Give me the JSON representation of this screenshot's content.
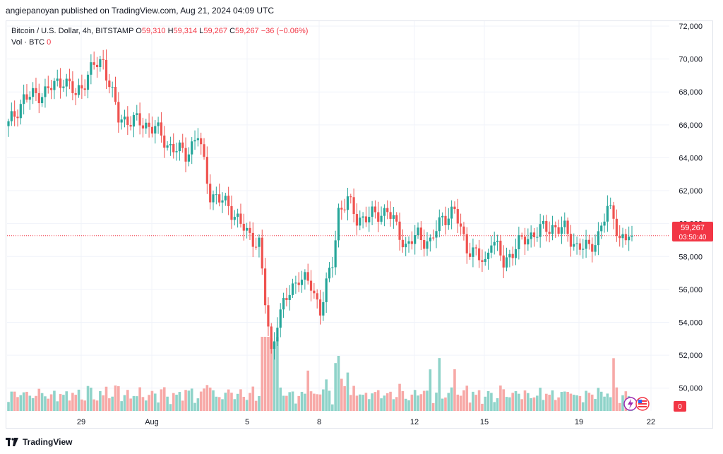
{
  "header": {
    "published": "angiepanoyan published on TradingView.com, Aug 21, 2024 04:09 UTC"
  },
  "legend": {
    "symbol": "Bitcoin / U.S. Dollar, 4h, BITSTAMP",
    "o_label": "O",
    "o_value": "59,310",
    "h_label": "H",
    "h_value": "59,314",
    "l_label": "L",
    "l_value": "59,267",
    "c_label": "C",
    "c_value": "59,267 −36 (−0.06%)",
    "vol_label": "Vol · BTC",
    "vol_value": "0"
  },
  "price_tag": {
    "price": "59,267",
    "countdown": "03:50:40"
  },
  "vol_tag": "0",
  "footer": {
    "brand": "TradingView"
  },
  "colors": {
    "up": "#26a69a",
    "down": "#ef5350",
    "up_vol": "#8fd3c9",
    "down_vol": "#f7a9a7",
    "grid": "#f0f3fa",
    "tag": "#f23645"
  },
  "chart_data": {
    "type": "candlestick",
    "y_axis": {
      "min": 49000,
      "max": 72000,
      "ticks": [
        72000,
        70000,
        68000,
        66000,
        64000,
        62000,
        60000,
        58000,
        56000,
        54000,
        52000,
        50000
      ],
      "side": "right"
    },
    "x_axis": {
      "tick_labels": [
        "29",
        "Aug",
        "5",
        "8",
        "12",
        "15",
        "19",
        "22"
      ]
    },
    "last_price": 59267,
    "anchors": [
      [
        0,
        66000
      ],
      [
        5,
        67600
      ],
      [
        12,
        68000
      ],
      [
        18,
        68800
      ],
      [
        22,
        67800
      ],
      [
        28,
        69600
      ],
      [
        31,
        69900
      ],
      [
        36,
        66400
      ],
      [
        42,
        66200
      ],
      [
        48,
        65800
      ],
      [
        52,
        64800
      ],
      [
        58,
        64200
      ],
      [
        62,
        65400
      ],
      [
        66,
        61800
      ],
      [
        72,
        61100
      ],
      [
        78,
        59400
      ],
      [
        82,
        58800
      ],
      [
        84,
        55200
      ],
      [
        86,
        52100
      ],
      [
        88,
        54200
      ],
      [
        92,
        55800
      ],
      [
        95,
        56800
      ],
      [
        99,
        56200
      ],
      [
        102,
        54800
      ],
      [
        106,
        57600
      ],
      [
        108,
        60800
      ],
      [
        111,
        61400
      ],
      [
        114,
        60300
      ],
      [
        118,
        60400
      ],
      [
        124,
        60800
      ],
      [
        128,
        59400
      ],
      [
        130,
        58600
      ],
      [
        134,
        59300
      ],
      [
        138,
        58800
      ],
      [
        142,
        60400
      ],
      [
        146,
        60700
      ],
      [
        150,
        58600
      ],
      [
        154,
        57900
      ],
      [
        156,
        57600
      ],
      [
        158,
        59200
      ],
      [
        162,
        57600
      ],
      [
        166,
        58600
      ],
      [
        170,
        59200
      ],
      [
        174,
        59600
      ],
      [
        178,
        59800
      ],
      [
        182,
        59600
      ],
      [
        186,
        58600
      ],
      [
        190,
        58500
      ],
      [
        193,
        59300
      ],
      [
        196,
        60800
      ],
      [
        198,
        60600
      ],
      [
        200,
        59000
      ],
      [
        202,
        59100
      ],
      [
        204,
        59267
      ]
    ],
    "volume_level": "relative; spikes near Aug 5, Aug 8-9, Aug 13-14 and Aug 20"
  }
}
